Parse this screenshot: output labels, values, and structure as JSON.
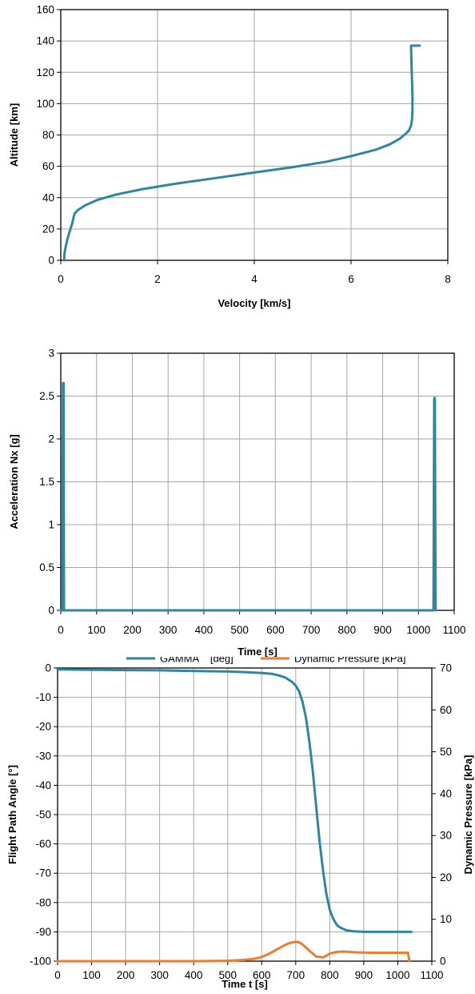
{
  "chart_data": [
    {
      "type": "line",
      "title": "",
      "xlabel": "Velocity [km/s]",
      "ylabel": "Altitude [km]",
      "xlim": [
        0,
        8
      ],
      "ylim": [
        0,
        160
      ],
      "xticks": [
        0,
        2,
        4,
        6,
        8
      ],
      "yticks": [
        0,
        20,
        40,
        60,
        80,
        100,
        120,
        140,
        160
      ],
      "grid": true,
      "legend": "none",
      "colors": {
        "series": "#2e86a0"
      },
      "series": [
        {
          "x": [
            7.42,
            7.24,
            7.25,
            7.26,
            7.27,
            7.27,
            7.26,
            7.24,
            7.2,
            7.12,
            7.0,
            6.8,
            6.5,
            6.0,
            5.5,
            4.8,
            4.0,
            3.2,
            2.4,
            1.7,
            1.15,
            0.75,
            0.5,
            0.35,
            0.29,
            0.27,
            0.24,
            0.2,
            0.15,
            0.11,
            0.08,
            0.07
          ],
          "y": [
            137,
            137,
            125,
            115,
            105,
            95,
            90,
            86,
            83,
            80.5,
            77.5,
            74,
            70.5,
            66.5,
            63,
            59.5,
            56,
            52.5,
            49,
            45.5,
            42,
            38.5,
            35,
            32,
            30,
            28,
            24,
            20,
            15,
            10,
            5,
            0
          ]
        }
      ]
    },
    {
      "type": "line",
      "title": "",
      "xlabel": "Time [s]",
      "ylabel": "Acceleration Nx [g]",
      "xlim": [
        0,
        1100
      ],
      "ylim": [
        0,
        3
      ],
      "xticks": [
        0,
        100,
        200,
        300,
        400,
        500,
        600,
        700,
        800,
        900,
        1000,
        1100
      ],
      "yticks": [
        0,
        0.5,
        1,
        1.5,
        2,
        2.5,
        3
      ],
      "ytick_labels": [
        "0",
        "0.5",
        "1",
        "1.5",
        "2",
        "2.5",
        "3"
      ],
      "grid": true,
      "legend": "none",
      "colors": {
        "series": "#2e86a0"
      },
      "series": [
        {
          "x": [
            0,
            5,
            6,
            8,
            9,
            11,
            13,
            1040,
            1042,
            1044,
            1045,
            1046,
            1048,
            1050
          ],
          "y": [
            0,
            0,
            2.65,
            2.65,
            0,
            0,
            0,
            0,
            0,
            2.45,
            2.48,
            2.45,
            0,
            0
          ]
        }
      ]
    },
    {
      "type": "line",
      "title": "",
      "xlabel": "Time t [s]",
      "ylabel": "Flight Path Angle [°]",
      "y2label": "Dynamic Pressure [kPa]",
      "xlim": [
        0,
        1100
      ],
      "ylim": [
        -100,
        0
      ],
      "y2lim": [
        0,
        70
      ],
      "xticks": [
        0,
        100,
        200,
        300,
        400,
        500,
        600,
        700,
        800,
        900,
        1000,
        1100
      ],
      "yticks": [
        -100,
        -90,
        -80,
        -70,
        -60,
        -50,
        -40,
        -30,
        -20,
        -10,
        0
      ],
      "y2ticks": [
        0,
        10,
        20,
        30,
        40,
        50,
        60,
        70
      ],
      "grid": true,
      "legend": "top-center",
      "series": [
        {
          "name": "GAMMA    [deg]",
          "axis": "left",
          "color": "#2e86a0",
          "x": [
            0,
            100,
            200,
            300,
            400,
            500,
            550,
            600,
            630,
            650,
            670,
            690,
            700,
            710,
            720,
            730,
            740,
            750,
            760,
            770,
            780,
            790,
            800,
            810,
            820,
            830,
            850,
            870,
            900,
            950,
            1000,
            1040
          ],
          "y": [
            -0.5,
            -0.6,
            -0.7,
            -0.8,
            -1.0,
            -1.2,
            -1.4,
            -1.7,
            -2.0,
            -2.5,
            -3.3,
            -4.8,
            -6.0,
            -8.0,
            -11.5,
            -17.0,
            -25.0,
            -35.0,
            -47.0,
            -59.0,
            -69.0,
            -77.0,
            -82.5,
            -85.5,
            -87.5,
            -88.5,
            -89.5,
            -89.8,
            -90.0,
            -90.0,
            -90.0,
            -90.0
          ]
        },
        {
          "name": "Dynamic Pressure [kPa]",
          "axis": "right",
          "color": "#ed7d31",
          "x": [
            0,
            100,
            200,
            300,
            400,
            500,
            550,
            580,
            600,
            620,
            640,
            660,
            680,
            700,
            710,
            720,
            740,
            760,
            780,
            790,
            800,
            820,
            840,
            880,
            920,
            960,
            1000,
            1030,
            1032,
            1034
          ],
          "y": [
            0,
            0,
            0,
            0,
            0,
            0.1,
            0.3,
            0.6,
            1.0,
            1.7,
            2.6,
            3.5,
            4.3,
            4.6,
            4.5,
            4.0,
            2.5,
            1.1,
            0.9,
            1.3,
            1.8,
            2.2,
            2.3,
            2.1,
            2.0,
            2.0,
            2.0,
            2.0,
            1.0,
            0.0
          ]
        }
      ]
    }
  ]
}
